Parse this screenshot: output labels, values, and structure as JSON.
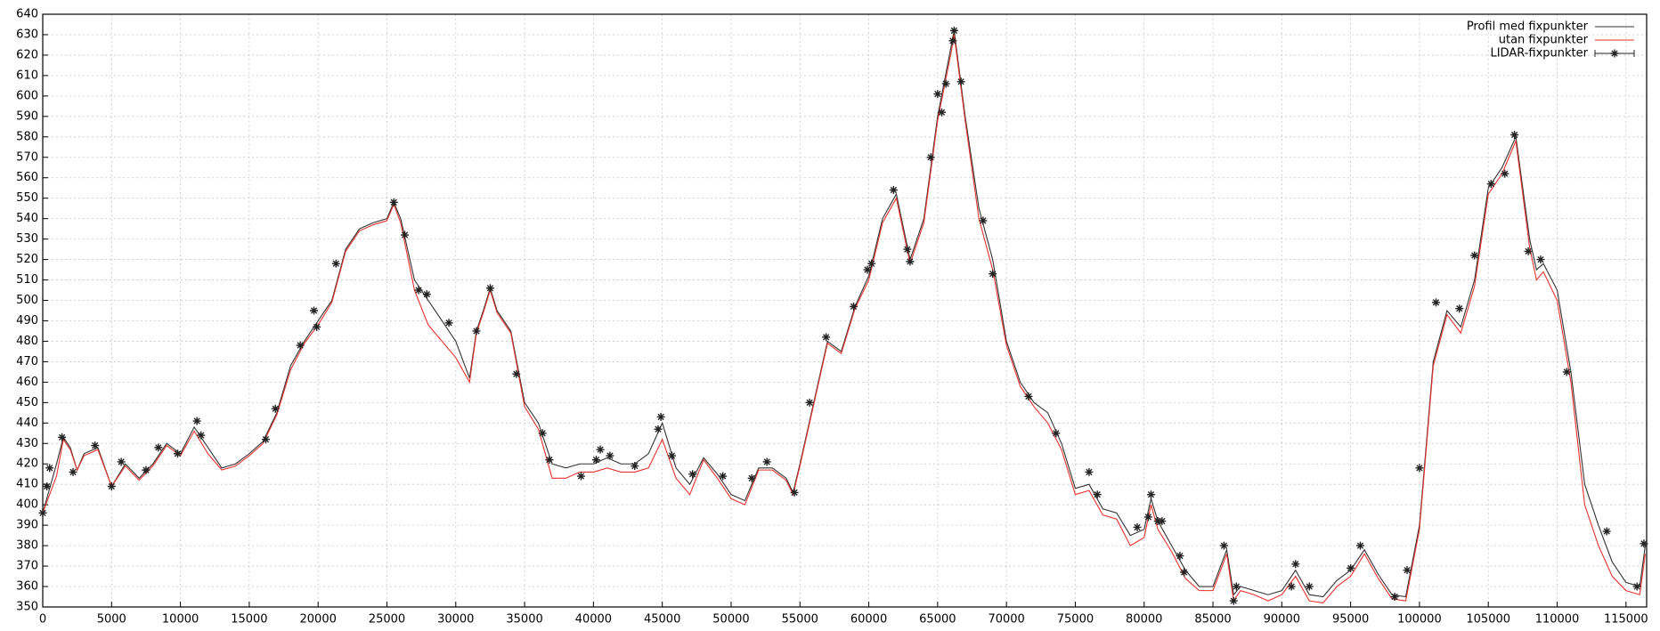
{
  "chart_data": {
    "type": "line",
    "xlim": [
      0,
      116500
    ],
    "ylim": [
      350,
      640
    ],
    "xticks": [
      0,
      5000,
      10000,
      15000,
      20000,
      25000,
      30000,
      35000,
      40000,
      45000,
      50000,
      55000,
      60000,
      65000,
      70000,
      75000,
      80000,
      85000,
      90000,
      95000,
      100000,
      105000,
      110000,
      115000
    ],
    "yticks": [
      350,
      360,
      370,
      380,
      390,
      400,
      410,
      420,
      430,
      440,
      450,
      460,
      470,
      480,
      490,
      500,
      510,
      520,
      530,
      540,
      550,
      560,
      570,
      580,
      590,
      600,
      610,
      620,
      630,
      640
    ],
    "grid": true,
    "legend": "top-right",
    "series": [
      {
        "name": "Profil med fixpunkter",
        "color": "#333333",
        "style": "line",
        "x": [
          0,
          1000,
          1500,
          2000,
          2500,
          3000,
          4000,
          5000,
          6000,
          7000,
          8000,
          9000,
          10000,
          11000,
          12000,
          13000,
          14000,
          15000,
          16000,
          17000,
          18000,
          19000,
          20000,
          21000,
          22000,
          23000,
          24000,
          25000,
          25500,
          26000,
          27000,
          28000,
          29000,
          30000,
          31000,
          31500,
          32000,
          32500,
          33000,
          34000,
          35000,
          36000,
          37000,
          38000,
          39000,
          40000,
          41000,
          42000,
          43000,
          44000,
          45000,
          46000,
          47000,
          48000,
          49000,
          50000,
          51000,
          52000,
          53000,
          54000,
          54500,
          55000,
          56000,
          57000,
          58000,
          59000,
          60000,
          61000,
          62000,
          63000,
          64000,
          65000,
          66000,
          66200,
          67000,
          68000,
          69000,
          70000,
          71000,
          72000,
          73000,
          74000,
          75000,
          76000,
          77000,
          78000,
          79000,
          80000,
          80500,
          81000,
          82000,
          83000,
          84000,
          85000,
          86000,
          86500,
          87000,
          88000,
          89000,
          90000,
          91000,
          92000,
          93000,
          94000,
          95000,
          96000,
          97000,
          98000,
          99000,
          100000,
          101000,
          102000,
          103000,
          104000,
          105000,
          106000,
          107000,
          108000,
          108500,
          109000,
          110000,
          111000,
          112000,
          113000,
          114000,
          115000,
          116000,
          116400
        ],
        "values": [
          396,
          420,
          433,
          428,
          417,
          425,
          428,
          409,
          420,
          413,
          420,
          430,
          425,
          438,
          428,
          418,
          420,
          425,
          431,
          445,
          468,
          480,
          490,
          500,
          525,
          535,
          538,
          540,
          548,
          540,
          510,
          500,
          490,
          480,
          462,
          485,
          495,
          506,
          495,
          485,
          450,
          440,
          420,
          418,
          420,
          420,
          423,
          420,
          420,
          425,
          440,
          418,
          410,
          423,
          415,
          405,
          402,
          418,
          418,
          413,
          406,
          420,
          450,
          480,
          475,
          497,
          512,
          540,
          552,
          520,
          540,
          590,
          625,
          632,
          590,
          545,
          520,
          480,
          460,
          450,
          445,
          430,
          408,
          410,
          398,
          396,
          385,
          388,
          403,
          392,
          380,
          368,
          360,
          360,
          378,
          356,
          360,
          358,
          356,
          358,
          368,
          356,
          355,
          363,
          368,
          378,
          366,
          356,
          355,
          390,
          470,
          495,
          487,
          510,
          555,
          565,
          580,
          530,
          515,
          518,
          505,
          465,
          410,
          390,
          372,
          362,
          360,
          380
        ]
      },
      {
        "name": "utan fixpunkter",
        "color": "#e8322c",
        "style": "line",
        "x": [
          0,
          1000,
          1500,
          2000,
          2500,
          3000,
          4000,
          5000,
          6000,
          7000,
          8000,
          9000,
          10000,
          11000,
          12000,
          13000,
          14000,
          15000,
          16000,
          17000,
          18000,
          19000,
          20000,
          21000,
          22000,
          23000,
          24000,
          25000,
          25500,
          26000,
          27000,
          28000,
          29000,
          30000,
          31000,
          31500,
          32000,
          32500,
          33000,
          34000,
          35000,
          36000,
          37000,
          38000,
          39000,
          40000,
          41000,
          42000,
          43000,
          44000,
          45000,
          46000,
          47000,
          48000,
          49000,
          50000,
          51000,
          52000,
          53000,
          54000,
          54500,
          55000,
          56000,
          57000,
          58000,
          59000,
          60000,
          61000,
          62000,
          63000,
          64000,
          65000,
          66000,
          66200,
          67000,
          68000,
          69000,
          70000,
          71000,
          72000,
          73000,
          74000,
          75000,
          76000,
          77000,
          78000,
          79000,
          80000,
          80500,
          81000,
          82000,
          83000,
          84000,
          85000,
          86000,
          86500,
          87000,
          88000,
          89000,
          90000,
          91000,
          92000,
          93000,
          94000,
          95000,
          96000,
          97000,
          98000,
          99000,
          100000,
          101000,
          102000,
          103000,
          104000,
          105000,
          106000,
          107000,
          108000,
          108500,
          109000,
          110000,
          111000,
          112000,
          113000,
          114000,
          115000,
          116000,
          116400
        ],
        "values": [
          396,
          414,
          432,
          427,
          417,
          424,
          427,
          409,
          419,
          412,
          419,
          429,
          424,
          436,
          425,
          417,
          419,
          424,
          430,
          444,
          466,
          479,
          488,
          499,
          524,
          534,
          537,
          539,
          547,
          538,
          505,
          488,
          480,
          472,
          460,
          484,
          494,
          505,
          494,
          484,
          448,
          437,
          413,
          413,
          416,
          416,
          418,
          416,
          416,
          418,
          432,
          413,
          405,
          422,
          413,
          403,
          400,
          417,
          417,
          412,
          405,
          419,
          449,
          479,
          474,
          496,
          510,
          538,
          550,
          518,
          538,
          588,
          622,
          630,
          588,
          540,
          515,
          478,
          458,
          448,
          440,
          427,
          405,
          407,
          395,
          393,
          380,
          384,
          400,
          388,
          377,
          364,
          358,
          358,
          376,
          353,
          358,
          356,
          353,
          356,
          365,
          353,
          352,
          360,
          365,
          376,
          364,
          354,
          353,
          388,
          468,
          493,
          484,
          507,
          552,
          562,
          578,
          526,
          510,
          514,
          500,
          460,
          400,
          380,
          365,
          358,
          356,
          376
        ]
      },
      {
        "name": "LIDAR-fixpunkter",
        "color": "#222222",
        "style": "points",
        "x": [
          0,
          300,
          500,
          1400,
          2200,
          3800,
          5000,
          5700,
          7500,
          8400,
          9800,
          11200,
          11500,
          16200,
          16900,
          18700,
          19700,
          19900,
          21300,
          25500,
          26300,
          27300,
          27900,
          29500,
          31500,
          32500,
          34400,
          36300,
          36800,
          39100,
          40200,
          40500,
          41200,
          43000,
          44700,
          44900,
          45700,
          47200,
          49400,
          51500,
          52600,
          54600,
          55700,
          56900,
          58900,
          59900,
          60200,
          61800,
          62800,
          63000,
          64500,
          65000,
          65300,
          65600,
          66100,
          66200,
          66700,
          68300,
          69000,
          71600,
          73600,
          76000,
          76600,
          79500,
          80300,
          80500,
          81000,
          81300,
          82600,
          82900,
          85800,
          86500,
          86700,
          90700,
          91000,
          92000,
          95000,
          95700,
          98200,
          99100,
          100000,
          101200,
          102900,
          104000,
          105200,
          106200,
          106900,
          107900,
          108800,
          110700,
          113600,
          115800,
          116300
        ],
        "values": [
          396,
          409,
          418,
          433,
          416,
          429,
          409,
          421,
          417,
          428,
          425,
          441,
          434,
          432,
          447,
          478,
          495,
          487,
          518,
          548,
          532,
          505,
          503,
          489,
          485,
          506,
          464,
          435,
          422,
          414,
          422,
          427,
          424,
          419,
          437,
          443,
          424,
          415,
          414,
          413,
          421,
          406,
          450,
          482,
          497,
          515,
          518,
          554,
          525,
          519,
          570,
          601,
          592,
          606,
          627,
          632,
          607,
          539,
          513,
          453,
          435,
          416,
          405,
          389,
          394,
          405,
          392,
          392,
          375,
          367,
          380,
          353,
          360,
          360,
          371,
          360,
          369,
          380,
          355,
          368,
          418,
          499,
          496,
          522,
          557,
          562,
          581,
          524,
          520,
          465,
          387,
          360,
          381
        ]
      }
    ]
  }
}
